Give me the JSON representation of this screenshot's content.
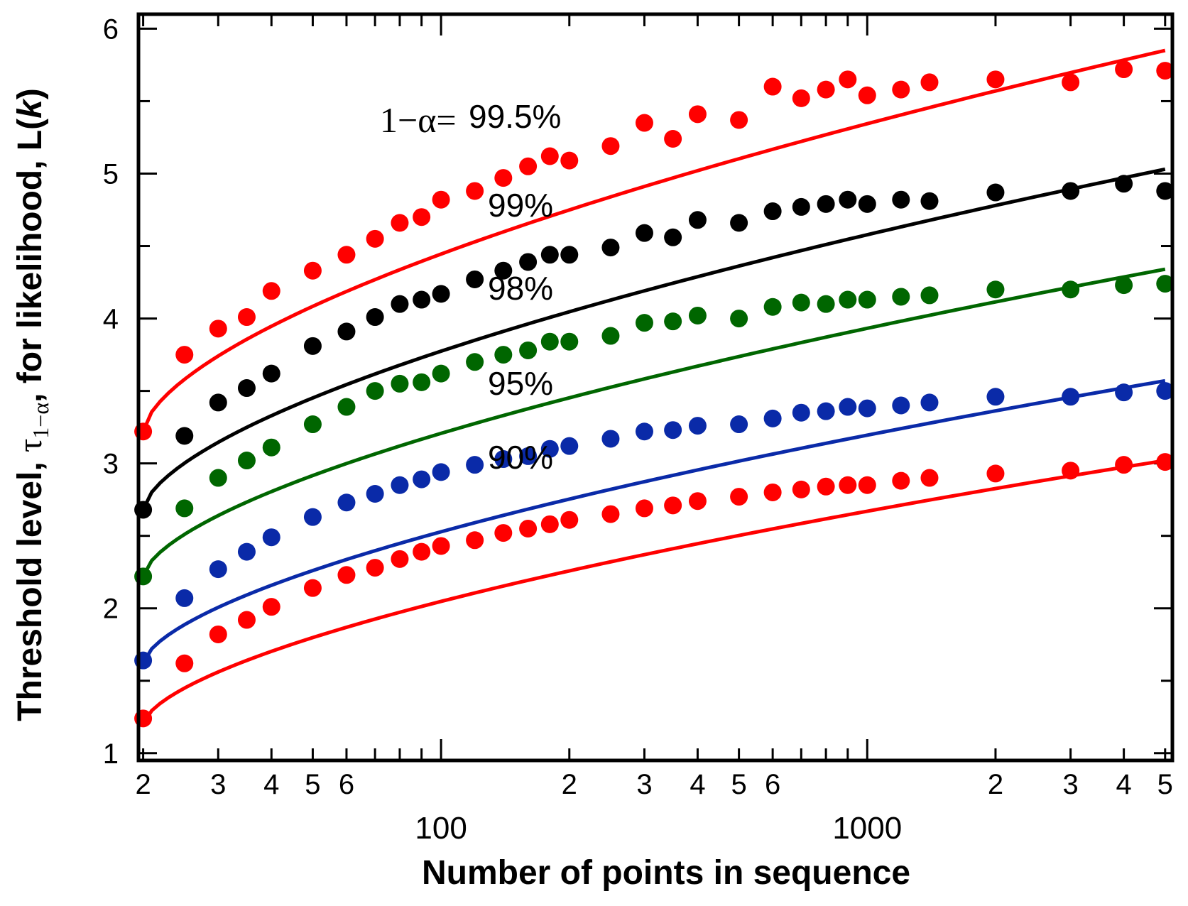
{
  "chart_data": {
    "type": "scatter",
    "xscale": "log",
    "xlim": [
      19.5,
      5200
    ],
    "ylim": [
      0.95,
      6.1
    ],
    "xlabel": "Number of points in sequence",
    "ylabel": {
      "prefix": "Threshold level, ",
      "tau": "τ",
      "tau_sub": "1−α",
      "middle": ", for likelihood, L(",
      "k": "k",
      "suffix": ")"
    },
    "y_ticks": [
      {
        "v": 1,
        "label": "1"
      },
      {
        "v": 2,
        "label": "2"
      },
      {
        "v": 3,
        "label": "3"
      },
      {
        "v": 4,
        "label": "4"
      },
      {
        "v": 5,
        "label": "5"
      },
      {
        "v": 6,
        "label": "6"
      }
    ],
    "x_ticks": [
      {
        "v": 20,
        "label": "2"
      },
      {
        "v": 30,
        "label": "3"
      },
      {
        "v": 40,
        "label": "4"
      },
      {
        "v": 50,
        "label": "5"
      },
      {
        "v": 60,
        "label": "6"
      },
      {
        "v": 200,
        "label": "2"
      },
      {
        "v": 300,
        "label": "3"
      },
      {
        "v": 400,
        "label": "4"
      },
      {
        "v": 500,
        "label": "5"
      },
      {
        "v": 600,
        "label": "6"
      },
      {
        "v": 2000,
        "label": "2"
      },
      {
        "v": 3000,
        "label": "3"
      },
      {
        "v": 4000,
        "label": "4"
      },
      {
        "v": 5000,
        "label": "5"
      }
    ],
    "decade_labels": [
      {
        "v": 100,
        "label": "100"
      },
      {
        "v": 1000,
        "label": "1000"
      }
    ],
    "alpha_prefix": "1−α=",
    "x": [
      20,
      25,
      30,
      35,
      40,
      50,
      60,
      70,
      80,
      90,
      100,
      120,
      140,
      160,
      180,
      200,
      250,
      300,
      350,
      400,
      500,
      600,
      700,
      800,
      900,
      1000,
      1200,
      1400,
      2000,
      3000,
      4000,
      5000
    ],
    "series": [
      {
        "name": "99.5%",
        "color": "#ff0000",
        "fit": [
          3.22,
          5.85
        ],
        "values": [
          3.22,
          3.75,
          3.93,
          4.01,
          4.19,
          4.33,
          4.44,
          4.55,
          4.66,
          4.7,
          4.82,
          4.88,
          4.97,
          5.05,
          5.12,
          5.09,
          5.19,
          5.35,
          5.24,
          5.41,
          5.37,
          5.6,
          5.52,
          5.58,
          5.65,
          5.54,
          5.58,
          5.63,
          5.65,
          5.63,
          5.72,
          5.71
        ]
      },
      {
        "name": "99%",
        "color": "#000000",
        "fit": [
          2.68,
          5.03
        ],
        "values": [
          2.68,
          3.19,
          3.42,
          3.52,
          3.62,
          3.81,
          3.91,
          4.01,
          4.1,
          4.13,
          4.17,
          4.27,
          4.33,
          4.39,
          4.44,
          4.44,
          4.49,
          4.59,
          4.56,
          4.68,
          4.66,
          4.74,
          4.77,
          4.79,
          4.82,
          4.79,
          4.82,
          4.81,
          4.87,
          4.88,
          4.93,
          4.88
        ]
      },
      {
        "name": "98%",
        "color": "#006600",
        "fit": [
          2.22,
          4.34
        ],
        "values": [
          2.22,
          2.69,
          2.9,
          3.02,
          3.11,
          3.27,
          3.39,
          3.5,
          3.55,
          3.56,
          3.62,
          3.7,
          3.75,
          3.78,
          3.84,
          3.84,
          3.88,
          3.97,
          3.98,
          4.02,
          4.0,
          4.08,
          4.11,
          4.1,
          4.13,
          4.13,
          4.15,
          4.16,
          4.2,
          4.2,
          4.23,
          4.24
        ]
      },
      {
        "name": "95%",
        "color": "#0a2aa8",
        "fit": [
          1.62,
          3.57
        ],
        "values": [
          1.64,
          2.07,
          2.27,
          2.39,
          2.49,
          2.63,
          2.73,
          2.79,
          2.85,
          2.89,
          2.94,
          2.99,
          3.03,
          3.05,
          3.1,
          3.12,
          3.17,
          3.22,
          3.23,
          3.26,
          3.27,
          3.31,
          3.35,
          3.36,
          3.39,
          3.38,
          3.4,
          3.42,
          3.46,
          3.46,
          3.49,
          3.5
        ]
      },
      {
        "name": "90%",
        "color": "#ff0000",
        "fit": [
          1.2,
          3.02
        ],
        "values": [
          1.24,
          1.62,
          1.82,
          1.92,
          2.01,
          2.14,
          2.23,
          2.28,
          2.34,
          2.39,
          2.43,
          2.47,
          2.52,
          2.55,
          2.58,
          2.61,
          2.65,
          2.69,
          2.71,
          2.74,
          2.77,
          2.8,
          2.82,
          2.84,
          2.85,
          2.85,
          2.88,
          2.9,
          2.93,
          2.95,
          2.99,
          3.01
        ]
      }
    ]
  }
}
